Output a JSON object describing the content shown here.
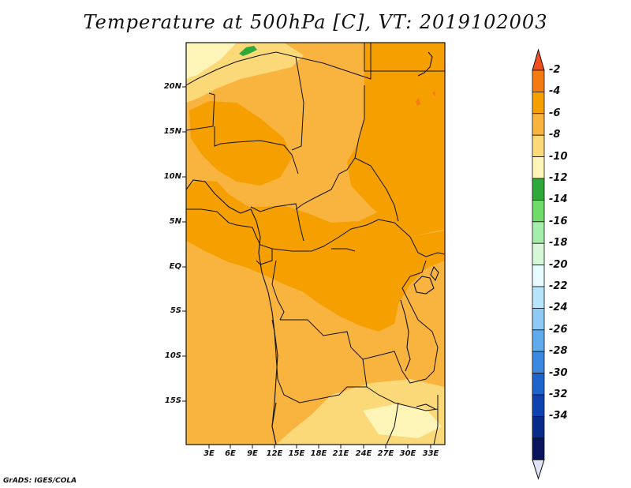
{
  "title": "Temperature at 500hPa [C], VT: 2019102003",
  "footer": "GrADS: IGES/COLA",
  "axes": {
    "lat_labels": [
      "20N",
      "15N",
      "10N",
      "5N",
      "EQ",
      "5S",
      "10S",
      "15S"
    ],
    "lon_labels": [
      "3E",
      "6E",
      "9E",
      "12E",
      "15E",
      "18E",
      "21E",
      "24E",
      "27E",
      "30E",
      "33E"
    ]
  },
  "colorbar": {
    "labels": [
      "-2",
      "-4",
      "-6",
      "-8",
      "-10",
      "-12",
      "-14",
      "-16",
      "-18",
      "-20",
      "-22",
      "-24",
      "-26",
      "-28",
      "-30",
      "-32",
      "-34"
    ],
    "colors": [
      "#f04e1a",
      "#f47a12",
      "#f5a000",
      "#f8b43e",
      "#fbd878",
      "#fdf5b8",
      "#2ea83a",
      "#6fdc6a",
      "#a6ecaa",
      "#d6f8d8",
      "#e6faff",
      "#b8e4fb",
      "#8ecaf3",
      "#5eaaea",
      "#3a88e0",
      "#1e62cc",
      "#0e42b0",
      "#082a8a",
      "#0a145e",
      "#e0e4f4"
    ]
  }
}
